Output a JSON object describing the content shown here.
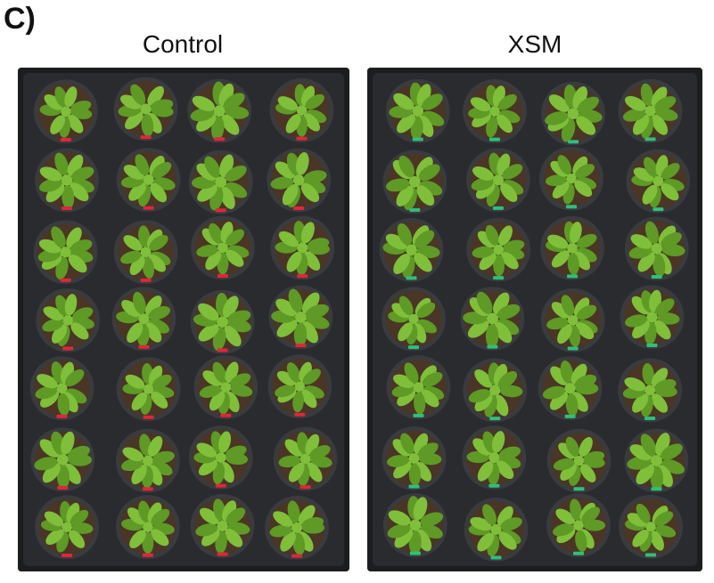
{
  "figure": {
    "panel_label": "C)",
    "panels": [
      {
        "title": "Control",
        "plants_per_row": 4,
        "rows": 7,
        "tag_color": "#e0263a"
      },
      {
        "title": "XSM",
        "plants_per_row": 4,
        "rows": 7,
        "tag_color": "#2fbf7a"
      }
    ],
    "colors": {
      "tray": "#1c1d1f",
      "soil": "#4a3526",
      "leaf": "#7fbf3a",
      "leaf_dark": "#5e9a25",
      "pot_rim": "#3a3b3e"
    }
  }
}
